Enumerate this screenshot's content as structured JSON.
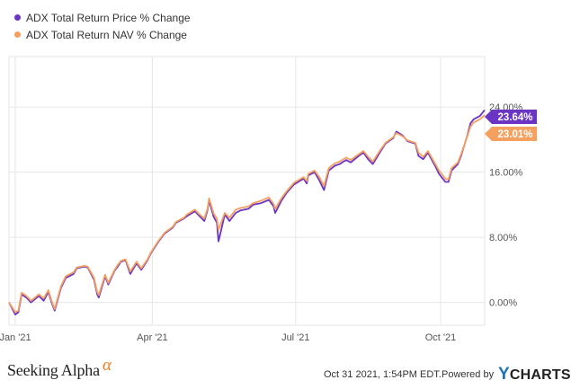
{
  "legend": {
    "price_label": "ADX Total Return Price % Change",
    "nav_label": "ADX Total Return NAV % Change"
  },
  "colors": {
    "price": "#6a35c5",
    "nav": "#f5a05f",
    "grid": "#e6e6e6",
    "axis_text": "#555555"
  },
  "chart_data": {
    "type": "line",
    "y_axis": {
      "ticks": [
        "0.00%",
        "8.00%",
        "16.00%",
        "24.00%"
      ],
      "tick_values": [
        0,
        8,
        16,
        24
      ],
      "ylim": [
        -2.8,
        30.2
      ],
      "unit": "%"
    },
    "x_axis": {
      "ticks": [
        "Jan '21",
        "Apr '21",
        "Jul '21",
        "Oct '21"
      ],
      "tick_dates": [
        "2021-01-04",
        "2021-04-01",
        "2021-07-01",
        "2021-10-01"
      ],
      "xlim": [
        "2020-12-31",
        "2021-10-29"
      ]
    },
    "grid": true,
    "legend_position": "top-left",
    "series": [
      {
        "name": "ADX Total Return Price % Change",
        "end_label": "23.64%",
        "points": [
          [
            "2020-12-31",
            0.0
          ],
          [
            "2021-01-04",
            -1.5
          ],
          [
            "2021-01-06",
            -1.2
          ],
          [
            "2021-01-08",
            1.0
          ],
          [
            "2021-01-11",
            0.6
          ],
          [
            "2021-01-14",
            0.0
          ],
          [
            "2021-01-19",
            0.8
          ],
          [
            "2021-01-22",
            0.2
          ],
          [
            "2021-01-25",
            1.3
          ],
          [
            "2021-01-27",
            0.0
          ],
          [
            "2021-01-29",
            -1.0
          ],
          [
            "2021-02-02",
            1.8
          ],
          [
            "2021-02-05",
            3.0
          ],
          [
            "2021-02-10",
            3.5
          ],
          [
            "2021-02-12",
            4.2
          ],
          [
            "2021-02-17",
            4.4
          ],
          [
            "2021-02-19",
            4.3
          ],
          [
            "2021-02-23",
            2.8
          ],
          [
            "2021-02-25",
            1.0
          ],
          [
            "2021-02-26",
            0.6
          ],
          [
            "2021-03-02",
            3.2
          ],
          [
            "2021-03-04",
            2.2
          ],
          [
            "2021-03-08",
            3.9
          ],
          [
            "2021-03-10",
            4.4
          ],
          [
            "2021-03-12",
            5.0
          ],
          [
            "2021-03-15",
            5.2
          ],
          [
            "2021-03-18",
            3.5
          ],
          [
            "2021-03-22",
            4.8
          ],
          [
            "2021-03-25",
            4.0
          ],
          [
            "2021-03-29",
            5.2
          ],
          [
            "2021-03-31",
            6.0
          ],
          [
            "2021-04-05",
            7.5
          ],
          [
            "2021-04-09",
            8.5
          ],
          [
            "2021-04-14",
            9.2
          ],
          [
            "2021-04-16",
            9.8
          ],
          [
            "2021-04-21",
            10.3
          ],
          [
            "2021-04-23",
            10.6
          ],
          [
            "2021-04-28",
            11.2
          ],
          [
            "2021-04-30",
            10.8
          ],
          [
            "2021-05-04",
            10.0
          ],
          [
            "2021-05-06",
            11.3
          ],
          [
            "2021-05-07",
            12.5
          ],
          [
            "2021-05-10",
            10.5
          ],
          [
            "2021-05-12",
            9.8
          ],
          [
            "2021-05-13",
            7.5
          ],
          [
            "2021-05-17",
            10.8
          ],
          [
            "2021-05-20",
            10.0
          ],
          [
            "2021-05-24",
            11.0
          ],
          [
            "2021-05-27",
            11.3
          ],
          [
            "2021-06-01",
            11.5
          ],
          [
            "2021-06-04",
            12.0
          ],
          [
            "2021-06-09",
            12.2
          ],
          [
            "2021-06-14",
            12.6
          ],
          [
            "2021-06-17",
            11.8
          ],
          [
            "2021-06-18",
            11.0
          ],
          [
            "2021-06-22",
            12.5
          ],
          [
            "2021-06-25",
            13.4
          ],
          [
            "2021-06-30",
            14.5
          ],
          [
            "2021-07-06",
            15.2
          ],
          [
            "2021-07-08",
            14.6
          ],
          [
            "2021-07-09",
            15.6
          ],
          [
            "2021-07-13",
            16.0
          ],
          [
            "2021-07-16",
            15.0
          ],
          [
            "2021-07-19",
            13.8
          ],
          [
            "2021-07-22",
            16.2
          ],
          [
            "2021-07-26",
            16.8
          ],
          [
            "2021-07-29",
            17.0
          ],
          [
            "2021-08-02",
            17.5
          ],
          [
            "2021-08-05",
            17.2
          ],
          [
            "2021-08-10",
            18.0
          ],
          [
            "2021-08-13",
            18.4
          ],
          [
            "2021-08-16",
            17.6
          ],
          [
            "2021-08-19",
            17.0
          ],
          [
            "2021-08-24",
            18.6
          ],
          [
            "2021-08-27",
            19.5
          ],
          [
            "2021-09-01",
            20.2
          ],
          [
            "2021-09-03",
            21.0
          ],
          [
            "2021-09-07",
            20.5
          ],
          [
            "2021-09-10",
            19.8
          ],
          [
            "2021-09-15",
            19.5
          ],
          [
            "2021-09-17",
            18.0
          ],
          [
            "2021-09-20",
            17.6
          ],
          [
            "2021-09-23",
            18.4
          ],
          [
            "2021-09-28",
            16.6
          ],
          [
            "2021-09-30",
            15.8
          ],
          [
            "2021-10-04",
            14.8
          ],
          [
            "2021-10-06",
            14.8
          ],
          [
            "2021-10-08",
            16.2
          ],
          [
            "2021-10-12",
            17.0
          ],
          [
            "2021-10-14",
            18.0
          ],
          [
            "2021-10-18",
            20.5
          ],
          [
            "2021-10-20",
            22.0
          ],
          [
            "2021-10-22",
            22.5
          ],
          [
            "2021-10-26",
            22.9
          ],
          [
            "2021-10-29",
            23.64
          ]
        ]
      },
      {
        "name": "ADX Total Return NAV % Change",
        "end_label": "23.01%",
        "points": [
          [
            "2020-12-31",
            0.0
          ],
          [
            "2021-01-04",
            -1.2
          ],
          [
            "2021-01-06",
            -1.0
          ],
          [
            "2021-01-08",
            1.2
          ],
          [
            "2021-01-11",
            0.8
          ],
          [
            "2021-01-14",
            0.2
          ],
          [
            "2021-01-19",
            1.0
          ],
          [
            "2021-01-22",
            0.5
          ],
          [
            "2021-01-25",
            1.5
          ],
          [
            "2021-01-27",
            0.2
          ],
          [
            "2021-01-29",
            -0.8
          ],
          [
            "2021-02-02",
            2.0
          ],
          [
            "2021-02-05",
            3.2
          ],
          [
            "2021-02-10",
            3.7
          ],
          [
            "2021-02-12",
            4.3
          ],
          [
            "2021-02-17",
            4.5
          ],
          [
            "2021-02-19",
            4.4
          ],
          [
            "2021-02-23",
            3.0
          ],
          [
            "2021-02-25",
            1.3
          ],
          [
            "2021-02-26",
            0.9
          ],
          [
            "2021-03-02",
            3.4
          ],
          [
            "2021-03-04",
            2.4
          ],
          [
            "2021-03-08",
            4.0
          ],
          [
            "2021-03-10",
            4.6
          ],
          [
            "2021-03-12",
            5.1
          ],
          [
            "2021-03-15",
            5.3
          ],
          [
            "2021-03-18",
            3.8
          ],
          [
            "2021-03-22",
            5.0
          ],
          [
            "2021-03-25",
            4.2
          ],
          [
            "2021-03-29",
            5.3
          ],
          [
            "2021-03-31",
            6.1
          ],
          [
            "2021-04-05",
            7.6
          ],
          [
            "2021-04-09",
            8.6
          ],
          [
            "2021-04-14",
            9.3
          ],
          [
            "2021-04-16",
            9.9
          ],
          [
            "2021-04-21",
            10.4
          ],
          [
            "2021-04-23",
            10.8
          ],
          [
            "2021-04-28",
            11.4
          ],
          [
            "2021-04-30",
            11.0
          ],
          [
            "2021-05-04",
            10.3
          ],
          [
            "2021-05-06",
            11.5
          ],
          [
            "2021-05-07",
            12.8
          ],
          [
            "2021-05-10",
            10.9
          ],
          [
            "2021-05-12",
            10.3
          ],
          [
            "2021-05-13",
            8.9
          ],
          [
            "2021-05-17",
            11.0
          ],
          [
            "2021-05-20",
            10.4
          ],
          [
            "2021-05-24",
            11.4
          ],
          [
            "2021-05-27",
            11.6
          ],
          [
            "2021-06-01",
            11.8
          ],
          [
            "2021-06-04",
            12.2
          ],
          [
            "2021-06-09",
            12.5
          ],
          [
            "2021-06-14",
            12.9
          ],
          [
            "2021-06-17",
            12.1
          ],
          [
            "2021-06-18",
            11.5
          ],
          [
            "2021-06-22",
            12.8
          ],
          [
            "2021-06-25",
            13.6
          ],
          [
            "2021-06-30",
            14.7
          ],
          [
            "2021-07-06",
            15.4
          ],
          [
            "2021-07-08",
            14.9
          ],
          [
            "2021-07-09",
            15.8
          ],
          [
            "2021-07-13",
            16.2
          ],
          [
            "2021-07-16",
            15.4
          ],
          [
            "2021-07-19",
            14.3
          ],
          [
            "2021-07-22",
            16.5
          ],
          [
            "2021-07-26",
            17.1
          ],
          [
            "2021-07-29",
            17.3
          ],
          [
            "2021-08-02",
            17.8
          ],
          [
            "2021-08-05",
            17.5
          ],
          [
            "2021-08-10",
            18.2
          ],
          [
            "2021-08-13",
            18.6
          ],
          [
            "2021-08-16",
            17.9
          ],
          [
            "2021-08-19",
            17.3
          ],
          [
            "2021-08-24",
            18.8
          ],
          [
            "2021-08-27",
            19.6
          ],
          [
            "2021-09-01",
            20.3
          ],
          [
            "2021-09-03",
            20.8
          ],
          [
            "2021-09-07",
            20.4
          ],
          [
            "2021-09-10",
            19.9
          ],
          [
            "2021-09-15",
            19.6
          ],
          [
            "2021-09-17",
            18.4
          ],
          [
            "2021-09-20",
            17.9
          ],
          [
            "2021-09-23",
            18.6
          ],
          [
            "2021-09-28",
            16.9
          ],
          [
            "2021-09-30",
            16.2
          ],
          [
            "2021-10-04",
            15.2
          ],
          [
            "2021-10-06",
            15.1
          ],
          [
            "2021-10-08",
            16.5
          ],
          [
            "2021-10-12",
            17.2
          ],
          [
            "2021-10-14",
            18.2
          ],
          [
            "2021-10-18",
            20.4
          ],
          [
            "2021-10-20",
            21.6
          ],
          [
            "2021-10-22",
            22.1
          ],
          [
            "2021-10-26",
            22.5
          ],
          [
            "2021-10-29",
            23.01
          ]
        ]
      }
    ]
  },
  "footer": {
    "brand": "Seeking Alpha",
    "brand_mark": "α",
    "timestamp": "Oct 31 2021, 1:54PM EDT.",
    "powered_by": "Powered by",
    "ycharts_y": "Y",
    "ycharts_rest": "CHARTS"
  }
}
